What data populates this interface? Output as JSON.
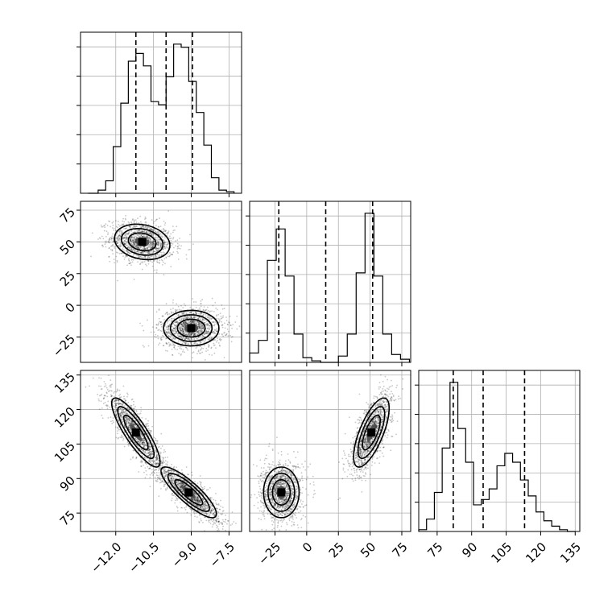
{
  "chart_data": {
    "type": "corner",
    "grid": true,
    "parameters": [
      {
        "id": "p0",
        "range": [
          -13.4,
          -7.0
        ],
        "ticks": [
          -12.0,
          -10.5,
          -9.0,
          -7.5
        ],
        "tick_labels": [
          "−12.0",
          "−10.5",
          "−9.0",
          "−7.5"
        ],
        "quantiles": [
          -11.2,
          -10.0,
          -8.95
        ]
      },
      {
        "id": "p1",
        "range": [
          -45,
          82
        ],
        "ticks": [
          -25,
          0,
          25,
          50,
          75
        ],
        "tick_labels": [
          "−25",
          "0",
          "25",
          "50",
          "75"
        ],
        "quantiles": [
          -22,
          15,
          52
        ]
      },
      {
        "id": "p2",
        "range": [
          67,
          137
        ],
        "ticks": [
          75,
          90,
          105,
          120,
          135
        ],
        "tick_labels": [
          "75",
          "90",
          "105",
          "120",
          "135"
        ],
        "quantiles": [
          82,
          95,
          113
        ]
      }
    ],
    "histograms": [
      {
        "param": "p0",
        "edges": [
          -13.1,
          -12.7,
          -12.4,
          -12.1,
          -11.8,
          -11.5,
          -11.2,
          -10.9,
          -10.6,
          -10.3,
          -10.0,
          -9.7,
          -9.4,
          -9.1,
          -8.8,
          -8.5,
          -8.2,
          -7.9,
          -7.6,
          -7.3
        ],
        "counts": [
          0,
          2,
          8,
          30,
          58,
          85,
          90,
          82,
          59,
          57,
          75,
          96,
          94,
          72,
          52,
          31,
          10,
          2,
          1
        ]
      },
      {
        "param": "p1",
        "edges": [
          -45,
          -38,
          -31,
          -24,
          -17,
          -10,
          -3,
          4,
          11,
          18,
          25,
          32,
          39,
          46,
          53,
          60,
          67,
          74,
          81
        ],
        "counts": [
          6,
          14,
          65,
          85,
          55,
          18,
          3,
          1,
          0,
          0,
          4,
          18,
          57,
          95,
          55,
          18,
          5,
          2
        ]
      },
      {
        "param": "p2",
        "edges": [
          67,
          70.4,
          73.8,
          77.2,
          80.6,
          84,
          87.4,
          90.8,
          94.2,
          97.6,
          101,
          104.4,
          107.8,
          111.2,
          114.6,
          118,
          121.4,
          124.8,
          128.2,
          131.6,
          135
        ],
        "counts": [
          1,
          7,
          22,
          47,
          84,
          58,
          39,
          15,
          18,
          24,
          37,
          44,
          39,
          29,
          20,
          11,
          6,
          3,
          1,
          0
        ]
      }
    ],
    "pairs": [
      {
        "x": "p0",
        "y": "p1",
        "modes": [
          {
            "cx": -10.95,
            "cy": 50,
            "sx": 0.55,
            "sy": 7,
            "rho": -0.2
          },
          {
            "cx": -9.0,
            "cy": -18,
            "sx": 0.55,
            "sy": 7,
            "rho": 0.0
          }
        ]
      },
      {
        "x": "p0",
        "y": "p2",
        "modes": [
          {
            "cx": -11.2,
            "cy": 110,
            "sx": 0.48,
            "sy": 7.5,
            "rho": -0.85
          },
          {
            "cx": -9.1,
            "cy": 84,
            "sx": 0.55,
            "sy": 5.5,
            "rho": -0.85
          }
        ]
      },
      {
        "x": "p1",
        "y": "p2",
        "modes": [
          {
            "cx": -20,
            "cy": 84,
            "sx": 7,
            "sy": 5.5,
            "rho": 0.0
          },
          {
            "cx": 51,
            "cy": 110,
            "sx": 7,
            "sy": 7.5,
            "rho": 0.7
          }
        ]
      }
    ]
  }
}
